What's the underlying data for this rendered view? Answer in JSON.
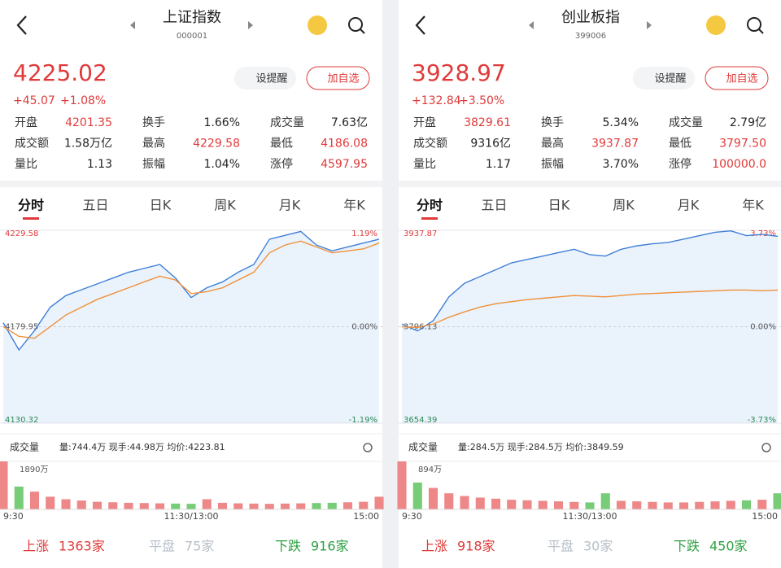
{
  "panels": [
    {
      "header": {
        "title": "上证指数",
        "code": "000001"
      },
      "price": "4225.02",
      "change": "+45.07",
      "change_pct": "+1.08%",
      "buttons": [
        "设提醒",
        "加自选"
      ],
      "stats": [
        [
          {
            "label": "开盘",
            "value": "4201.35",
            "color": "#e03a3a"
          },
          {
            "label": "换手",
            "value": "1.66%",
            "color": "#222"
          },
          {
            "label": "成交量",
            "value": "7.63亿",
            "color": "#222"
          }
        ],
        [
          {
            "label": "成交额",
            "value": "1.58万亿",
            "color": "#222"
          },
          {
            "label": "最高",
            "value": "4229.58",
            "color": "#e03a3a"
          },
          {
            "label": "最低",
            "value": "4186.08",
            "color": "#e03a3a"
          }
        ],
        [
          {
            "label": "量比",
            "value": "1.13",
            "color": "#222"
          },
          {
            "label": "振幅",
            "value": "1.04%",
            "color": "#222"
          },
          {
            "label": "涨停",
            "value": "4597.95",
            "color": "#e03a3a"
          }
        ]
      ],
      "tabs": [
        "分时",
        "五日",
        "日K",
        "周K",
        "月K",
        "年K"
      ],
      "chart_data": {
        "type": "line",
        "ylim": [
          4130.32,
          4229.58
        ],
        "yticks": [
          4229.58,
          4179.95,
          4130.32
        ],
        "pct_labels": [
          "1.19%",
          "0.00%",
          "-1.19%"
        ],
        "series": [
          {
            "color": "#3f7fd8",
            "values": [
              4182,
              4168,
              4178,
              4190,
              4196,
              4199,
              4202,
              4205,
              4208,
              4210,
              4212,
              4205,
              4195,
              4200,
              4203,
              4208,
              4212,
              4225,
              4227,
              4229,
              4222,
              4219,
              4221,
              4223,
              4225
            ]
          },
          {
            "color": "#f0913a",
            "values": [
              4180,
              4175,
              4174,
              4180,
              4186,
              4190,
              4194,
              4197,
              4200,
              4203,
              4206,
              4204,
              4197,
              4198,
              4200,
              4204,
              4208,
              4218,
              4222,
              4224,
              4221,
              4218,
              4219,
              4220,
              4223
            ]
          }
        ],
        "volume": {
          "label": "成交量",
          "info": "量:744.4万 现手:44.98万 均价:4223.81",
          "max": {
            "value": 1890,
            "label": "1890万"
          },
          "values": [
            1890,
            900,
            700,
            500,
            400,
            350,
            300,
            280,
            260,
            250,
            240,
            230,
            220,
            400,
            260,
            240,
            230,
            220,
            230,
            240,
            250,
            260,
            280,
            300,
            500
          ]
        },
        "xlabels": [
          "9:30",
          "11:30/13:00",
          "15:00"
        ]
      },
      "footer": [
        {
          "label": "上涨",
          "value": "1363家",
          "color": "#e03a3a"
        },
        {
          "label": "平盘",
          "value": "75家",
          "color": "#b8c0c8"
        },
        {
          "label": "下跌",
          "value": "916家",
          "color": "#2ea043"
        }
      ]
    },
    {
      "header": {
        "title": "创业板指",
        "code": "399006"
      },
      "price": "3928.97",
      "change": "+132.84",
      "change_pct": "+3.50%",
      "buttons": [
        "设提醒",
        "加自选"
      ],
      "stats": [
        [
          {
            "label": "开盘",
            "value": "3829.61",
            "color": "#e03a3a"
          },
          {
            "label": "换手",
            "value": "5.34%",
            "color": "#222"
          },
          {
            "label": "成交量",
            "value": "2.79亿",
            "color": "#222"
          }
        ],
        [
          {
            "label": "成交额",
            "value": "9316亿",
            "color": "#222"
          },
          {
            "label": "最高",
            "value": "3937.87",
            "color": "#e03a3a"
          },
          {
            "label": "最低",
            "value": "3797.50",
            "color": "#e03a3a"
          }
        ],
        [
          {
            "label": "量比",
            "value": "1.17",
            "color": "#222"
          },
          {
            "label": "振幅",
            "value": "3.70%",
            "color": "#222"
          },
          {
            "label": "涨停",
            "value": "100000.0",
            "color": "#e03a3a"
          }
        ]
      ],
      "tabs": [
        "分时",
        "五日",
        "日K",
        "周K",
        "月K",
        "年K"
      ],
      "chart_data": {
        "type": "line",
        "ylim": [
          3654.39,
          3937.87
        ],
        "yticks": [
          3937.87,
          3796.13,
          3654.39
        ],
        "pct_labels": [
          "3.73%",
          "0.00%",
          "-3.73%"
        ],
        "series": [
          {
            "color": "#3f7fd8",
            "values": [
              3800,
              3790,
              3805,
              3840,
              3860,
              3870,
              3880,
              3890,
              3895,
              3900,
              3905,
              3910,
              3902,
              3900,
              3910,
              3915,
              3918,
              3920,
              3925,
              3930,
              3935,
              3937,
              3930,
              3932,
              3929
            ]
          },
          {
            "color": "#f0913a",
            "values": [
              3796,
              3795,
              3800,
              3810,
              3818,
              3825,
              3830,
              3833,
              3836,
              3838,
              3840,
              3842,
              3841,
              3840,
              3842,
              3844,
              3845,
              3846,
              3847,
              3848,
              3849,
              3850,
              3850,
              3849,
              3850
            ]
          }
        ],
        "volume": {
          "label": "成交量",
          "info": "量:284.5万 现手:284.5万 均价:3849.59",
          "max": {
            "value": 894,
            "label": "894万"
          },
          "values": [
            894,
            500,
            400,
            300,
            250,
            220,
            200,
            180,
            170,
            160,
            150,
            140,
            130,
            300,
            160,
            150,
            140,
            130,
            130,
            140,
            150,
            160,
            170,
            180,
            300
          ]
        },
        "xlabels": [
          "9:30",
          "11:30/13:00",
          "15:00"
        ]
      },
      "footer": [
        {
          "label": "上涨",
          "value": "918家",
          "color": "#e03a3a"
        },
        {
          "label": "平盘",
          "value": "30家",
          "color": "#b8c0c8"
        },
        {
          "label": "下跌",
          "value": "450家",
          "color": "#2ea043"
        }
      ]
    }
  ]
}
